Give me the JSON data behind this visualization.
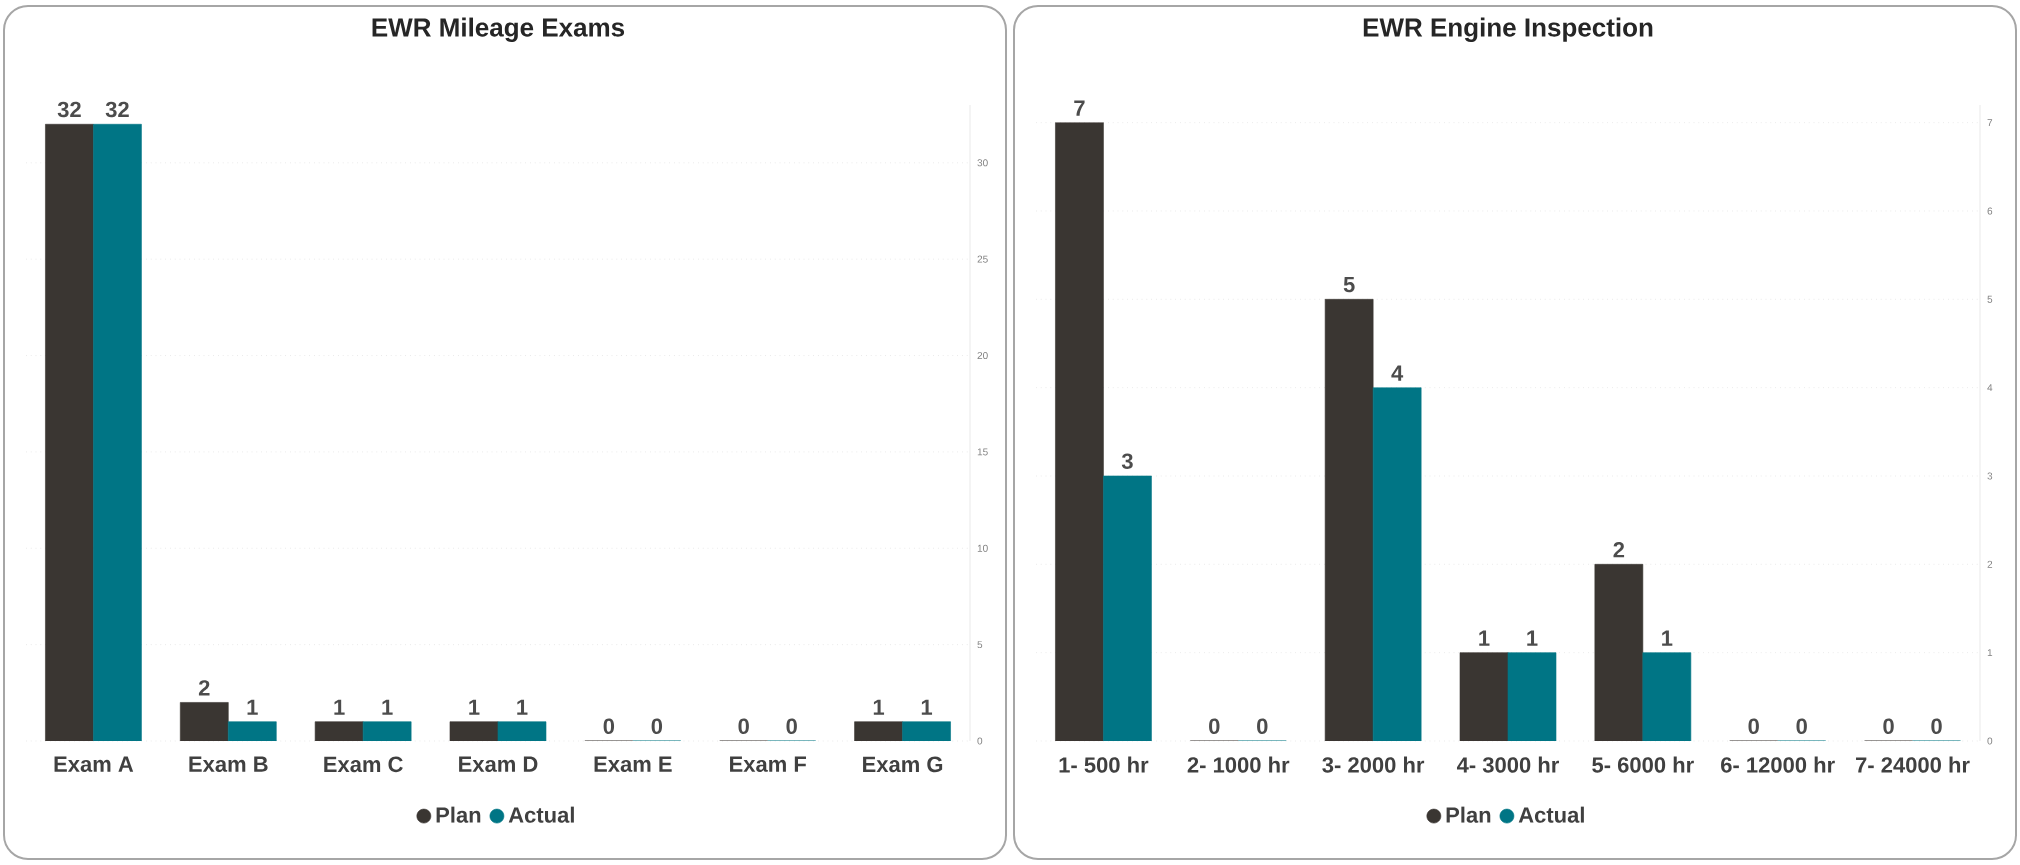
{
  "chart_data": [
    {
      "type": "bar",
      "title": "EWR Mileage Exams",
      "categories": [
        "Exam A",
        "Exam B",
        "Exam C",
        "Exam D",
        "Exam E",
        "Exam F",
        "Exam G"
      ],
      "series": [
        {
          "name": "Plan",
          "color": "#3a3632",
          "values": [
            32,
            2,
            1,
            1,
            0,
            0,
            1
          ]
        },
        {
          "name": "Actual",
          "color": "#007585",
          "values": [
            32,
            1,
            1,
            1,
            0,
            0,
            1
          ]
        }
      ],
      "ylim": [
        0,
        33
      ],
      "yticks": [
        0,
        5,
        10,
        15,
        20,
        25,
        30
      ],
      "grid": "y",
      "legend": "bottom",
      "data_labels": true
    },
    {
      "type": "bar",
      "title": "EWR Engine Inspection",
      "categories": [
        "1- 500 hr",
        "2- 1000 hr",
        "3- 2000 hr",
        "4- 3000 hr",
        "5- 6000 hr",
        "6- 12000 hr",
        "7- 24000 hr"
      ],
      "series": [
        {
          "name": "Plan",
          "color": "#3a3632",
          "values": [
            7,
            0,
            5,
            1,
            2,
            0,
            0
          ]
        },
        {
          "name": "Actual",
          "color": "#007585",
          "values": [
            3,
            0,
            4,
            1,
            1,
            0,
            0
          ]
        }
      ],
      "ylim": [
        0,
        7.2
      ],
      "yticks": [
        0,
        1,
        2,
        3,
        4,
        5,
        6,
        7
      ],
      "grid": "y",
      "legend": "bottom",
      "data_labels": true
    }
  ]
}
